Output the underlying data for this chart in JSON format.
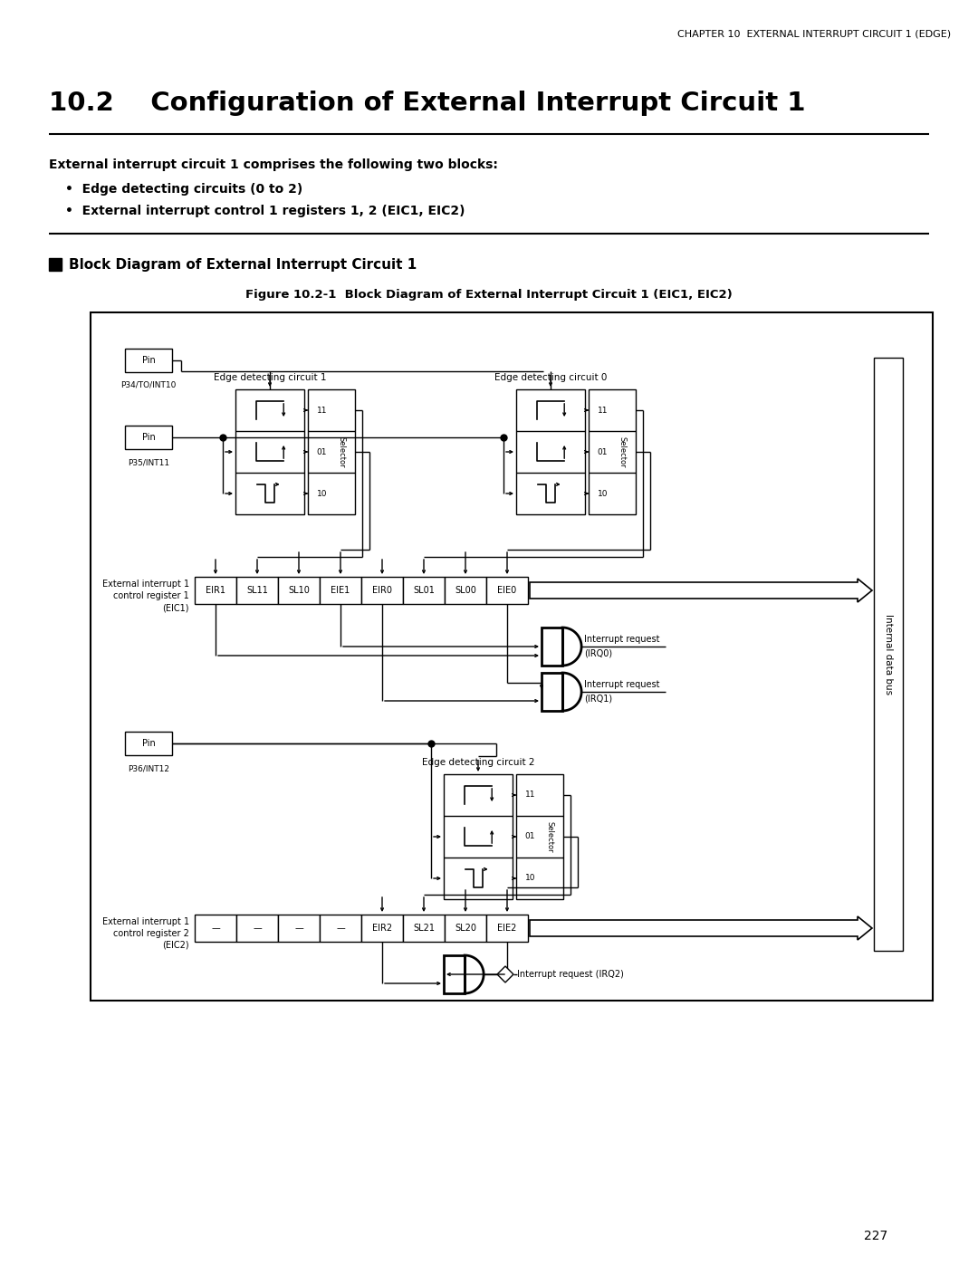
{
  "page_header": "CHAPTER 10  EXTERNAL INTERRUPT CIRCUIT 1 (EDGE)",
  "section_title": "10.2    Configuration of External Interrupt Circuit 1",
  "body_text": "External interrupt circuit 1 comprises the following two blocks:",
  "bullet1": "Edge detecting circuits (0 to 2)",
  "bullet2": "External interrupt control 1 registers 1, 2 (EIC1, EIC2)",
  "subsection_title": "Block Diagram of External Interrupt Circuit 1",
  "figure_caption": "Figure 10.2-1  Block Diagram of External Interrupt Circuit 1 (EIC1, EIC2)",
  "page_number": "227",
  "bg_color": "#ffffff",
  "eic1_labels": [
    "EIR1",
    "SL11",
    "SL10",
    "EIE1",
    "EIR0",
    "SL01",
    "SL00",
    "EIE0"
  ],
  "eic2_labels": [
    "—",
    "—",
    "—",
    "—",
    "EIR2",
    "SL21",
    "SL20",
    "EIE2"
  ],
  "eic1_left_text": [
    "External interrupt 1",
    "control register 1",
    "(EIC1)"
  ],
  "eic2_left_text": [
    "External interrupt 1",
    "control register 2",
    "(EIC2)"
  ],
  "pin1_label": "Pin",
  "pin1_sub": "P34/TO/INT10",
  "pin2_label": "Pin",
  "pin2_sub": "P35/INT11",
  "pin3_label": "Pin",
  "pin3_sub": "P36/INT12",
  "edc1_title": "Edge detecting circuit 1",
  "edc0_title": "Edge detecting circuit 0",
  "edc2_title": "Edge detecting circuit 2",
  "bus_label": "Internal data bus",
  "irq0_label1": "Interrupt request",
  "irq0_label2": "(IRQ0)",
  "irq1_label1": "Interrupt request",
  "irq1_label2": "(IRQ1)",
  "irq2_label": "Interrupt request (IRQ2)"
}
